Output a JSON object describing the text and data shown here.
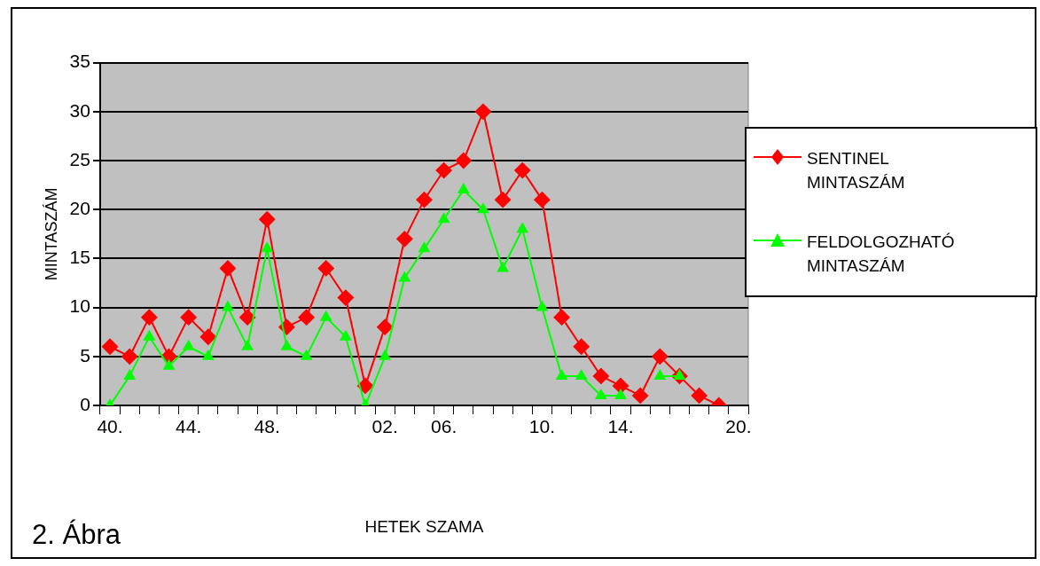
{
  "chart_data": {
    "type": "line",
    "xlabel": "HETEK SZAMA",
    "ylabel": "MINTASZÁM",
    "annotations": [
      "2. Ábra"
    ],
    "categories": [
      "40.",
      null,
      null,
      null,
      "44.",
      null,
      null,
      null,
      "48.",
      null,
      null,
      null,
      null,
      null,
      "02.",
      null,
      null,
      "06.",
      null,
      null,
      null,
      null,
      "10.",
      null,
      null,
      null,
      "14.",
      null,
      null,
      null,
      null,
      null,
      "20."
    ],
    "series": [
      {
        "name": "SENTINEL MINTASZÁM",
        "color": "#ff0000",
        "marker": "diamond",
        "values": [
          6,
          5,
          9,
          5,
          9,
          7,
          14,
          9,
          19,
          8,
          9,
          14,
          11,
          2,
          8,
          17,
          21,
          24,
          25,
          30,
          21,
          24,
          21,
          9,
          6,
          3,
          2,
          1,
          5,
          3,
          1,
          0,
          null
        ]
      },
      {
        "name": "FELDOLGOZHATÓ MINTASZÁM",
        "color": "#00ff00",
        "marker": "triangle",
        "values": [
          0,
          3,
          7,
          4,
          6,
          5,
          10,
          6,
          16,
          6,
          5,
          9,
          7,
          0,
          5,
          13,
          16,
          19,
          22,
          20,
          14,
          18,
          10,
          3,
          3,
          1,
          1,
          null,
          3,
          3,
          null,
          null,
          null
        ]
      }
    ],
    "ylim": [
      0,
      35
    ],
    "yticks": [
      0,
      5,
      10,
      15,
      20,
      25,
      30,
      35
    ],
    "grid": "y",
    "legend": "right"
  }
}
